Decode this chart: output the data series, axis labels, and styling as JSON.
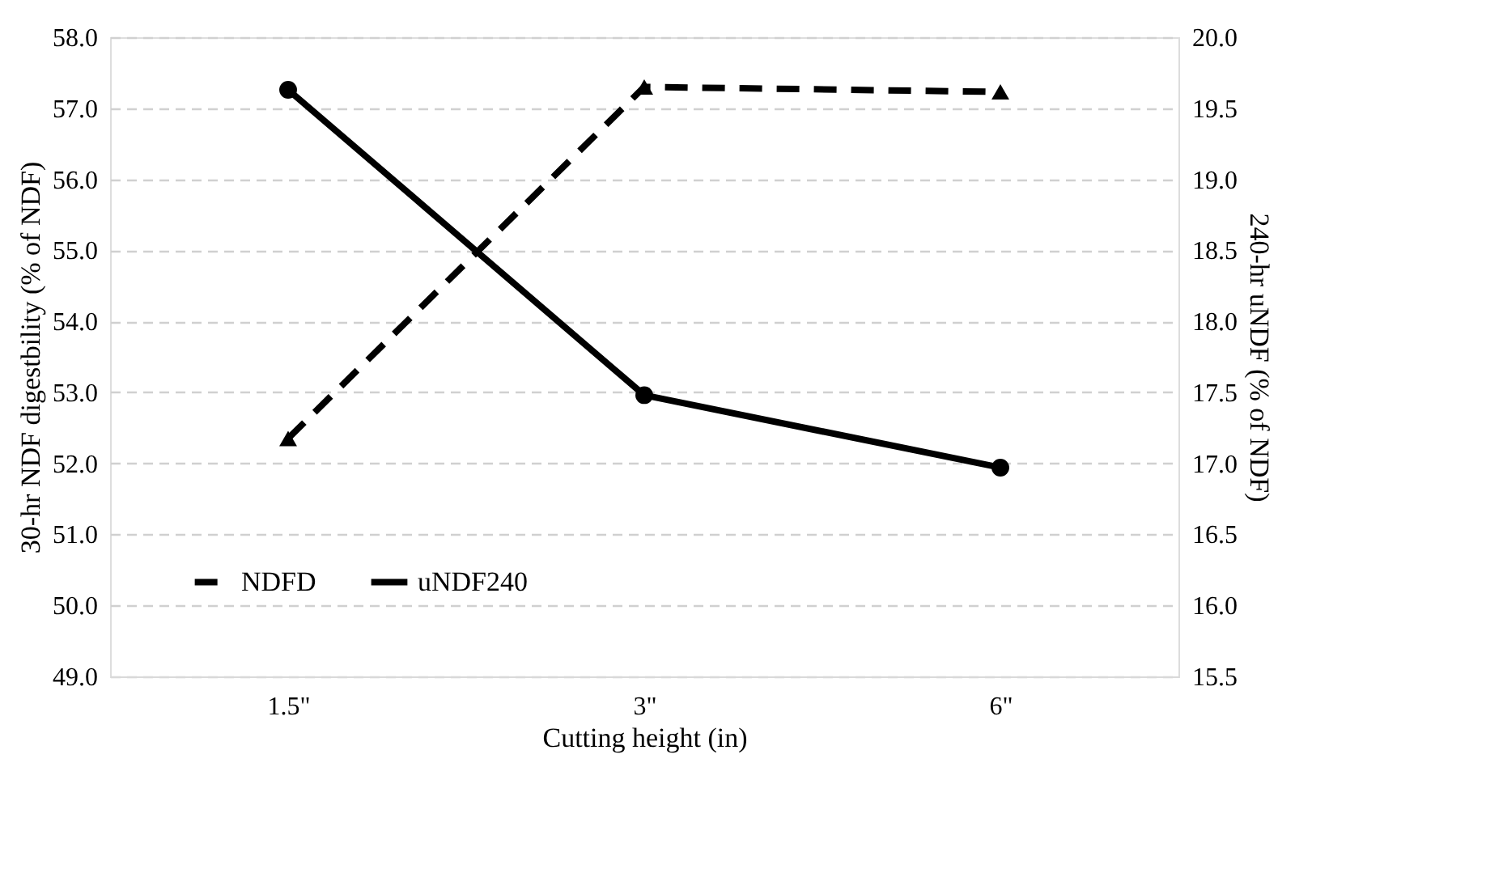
{
  "chart_data": {
    "type": "line",
    "xlabel": "Cutting height (in)",
    "ylabel": "30-hr NDF digestbility (% of NDF)",
    "y2label": "240-hr uNDF (% of NDF)",
    "categories": [
      "1.5\"",
      "3\"",
      "6\""
    ],
    "series": [
      {
        "name": "NDFD",
        "color": "#000000",
        "values": [
          52.35,
          57.3,
          57.23
        ],
        "marker": "triangle",
        "line_style": "dashed"
      },
      {
        "name": "uNDF240",
        "color": "#000000",
        "values": [
          19.63,
          17.48,
          16.97
        ],
        "marker": "circle",
        "line_style": "solid",
        "axis": "y2"
      }
    ],
    "ylim": [
      49,
      58
    ],
    "yticks": [
      {
        "value": 49,
        "label": "49.0"
      },
      {
        "value": 50,
        "label": "50.0"
      },
      {
        "value": 51,
        "label": "51.0"
      },
      {
        "value": 52,
        "label": "52.0"
      },
      {
        "value": 53,
        "label": "53.0"
      },
      {
        "value": 54,
        "label": "54.0"
      },
      {
        "value": 55,
        "label": "55.0"
      },
      {
        "value": 56,
        "label": "56.0"
      },
      {
        "value": 57,
        "label": "57.0"
      },
      {
        "value": 58,
        "label": "58.0"
      }
    ],
    "y2lim": [
      15.5,
      20
    ],
    "y2ticks": [
      {
        "value": 15.5,
        "label": "15.5"
      },
      {
        "value": 16,
        "label": "16.0"
      },
      {
        "value": 16.5,
        "label": "16.5"
      },
      {
        "value": 17,
        "label": "17.0"
      },
      {
        "value": 17.5,
        "label": "17.5"
      },
      {
        "value": 18,
        "label": "18.0"
      },
      {
        "value": 18.5,
        "label": "18.5"
      },
      {
        "value": 19,
        "label": "19.0"
      },
      {
        "value": 19.5,
        "label": "19.5"
      },
      {
        "value": 20,
        "label": "20.0"
      }
    ],
    "grid": "y",
    "legend": "bottom left"
  }
}
